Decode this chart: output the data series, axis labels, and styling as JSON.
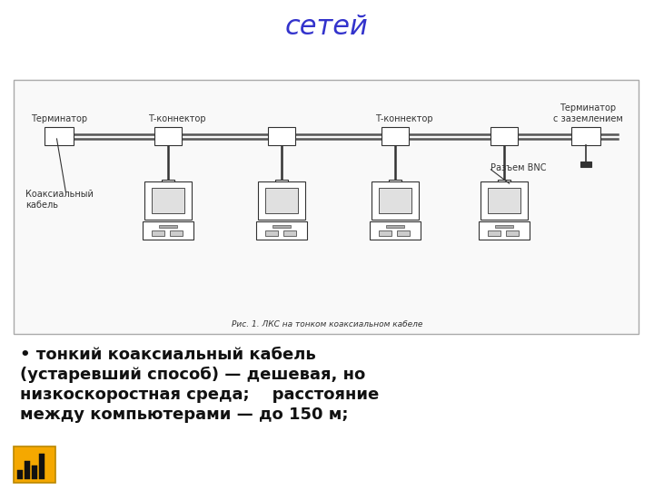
{
  "title": "сетей",
  "title_color": "#3333cc",
  "title_fontsize": 22,
  "bg_color": "#ffffff",
  "bullet_text_line1": "• тонкий коаксиальный кабель",
  "bullet_text_line2": "(устаревший способ) — дешевая, но",
  "bullet_text_line3": "низкоскоростная среда;    расстояние",
  "bullet_text_line4": "между компьютерами — до 150 м;",
  "bullet_fontsize": 13,
  "caption": "Рис. 1. ЛКС на тонком коаксиальном кабеле",
  "label_terminator_left": "Терминатор",
  "label_t_connector1": "Т-коннектор",
  "label_t_connector2": "Т-коннектор",
  "label_terminator_right": "Терминатор\nс заземлением",
  "label_coax": "Коаксиальный\nкабель",
  "label_bnc": "Разъем BNC",
  "line_color": "#333333",
  "box_facecolor": "#ffffff",
  "box_edgecolor": "#333333",
  "cable_color": "#555555",
  "diag_border": "#aaaaaa",
  "diag_face": "#f9f9f9"
}
